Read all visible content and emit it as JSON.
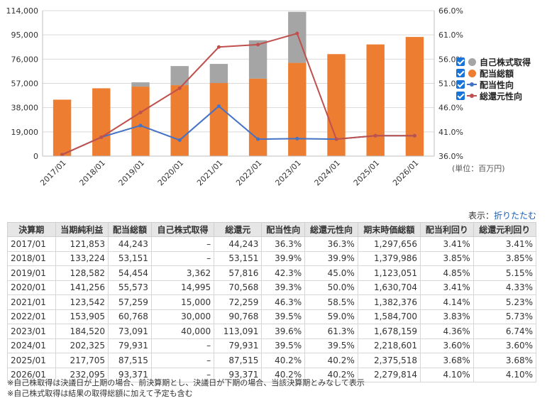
{
  "chart_data": {
    "type": "bar",
    "categories": [
      "2017/01",
      "2018/01",
      "2019/01",
      "2020/01",
      "2021/01",
      "2022/01",
      "2023/01",
      "2024/01",
      "2025/01",
      "2026/01"
    ],
    "y_left": {
      "ticks": [
        "0",
        "19,000",
        "38,000",
        "57,000",
        "76,000",
        "95,000",
        "114,000"
      ],
      "min": 0,
      "max": 114000
    },
    "y_right": {
      "ticks": [
        "36.0%",
        "41.0%",
        "46.0%",
        "51.0%",
        "56.0%",
        "61.0%",
        "66.0%"
      ],
      "min": 36,
      "max": 66
    },
    "series": [
      {
        "name": "配当総額",
        "kind": "bar",
        "color": "#ed7d31",
        "values": [
          44243,
          53151,
          54454,
          55573,
          57259,
          60768,
          73091,
          79931,
          87515,
          93371
        ]
      },
      {
        "name": "自己株式取得",
        "kind": "bar-stacked",
        "color": "#a5a5a5",
        "values": [
          0,
          0,
          3362,
          14995,
          15000,
          30000,
          40000,
          0,
          0,
          0
        ]
      },
      {
        "name": "配当性向",
        "kind": "line",
        "color": "#4472c4",
        "values": [
          36.3,
          39.9,
          42.3,
          39.3,
          46.3,
          39.5,
          39.6,
          39.5,
          40.2,
          40.2
        ]
      },
      {
        "name": "総還元性向",
        "kind": "line",
        "color": "#c0504d",
        "values": [
          36.3,
          39.9,
          45.0,
          50.0,
          58.5,
          59.0,
          61.3,
          39.5,
          40.2,
          40.2
        ]
      }
    ],
    "legend_order": [
      "自己株式取得",
      "配当総額",
      "配当性向",
      "総還元性向"
    ],
    "legend_placement": "right",
    "grid": true
  },
  "unit_label": "(単位：百万円)",
  "display_toggle": {
    "label": "表示：",
    "link": "折りたたむ"
  },
  "table": {
    "headers": [
      "決算期",
      "当期純利益",
      "配当総額",
      "自己株式取得",
      "総還元",
      "配当性向",
      "総還元性向",
      "期末時価総額",
      "配当利回り",
      "総還元利回り"
    ],
    "rows": [
      [
        "2017/01",
        "121,853",
        "44,243",
        "–",
        "44,243",
        "36.3%",
        "36.3%",
        "1,297,656",
        "3.41%",
        "3.41%"
      ],
      [
        "2018/01",
        "133,224",
        "53,151",
        "–",
        "53,151",
        "39.9%",
        "39.9%",
        "1,379,986",
        "3.85%",
        "3.85%"
      ],
      [
        "2019/01",
        "128,582",
        "54,454",
        "3,362",
        "57,816",
        "42.3%",
        "45.0%",
        "1,123,051",
        "4.85%",
        "5.15%"
      ],
      [
        "2020/01",
        "141,256",
        "55,573",
        "14,995",
        "70,568",
        "39.3%",
        "50.0%",
        "1,630,704",
        "3.41%",
        "4.33%"
      ],
      [
        "2021/01",
        "123,542",
        "57,259",
        "15,000",
        "72,259",
        "46.3%",
        "58.5%",
        "1,382,376",
        "4.14%",
        "5.23%"
      ],
      [
        "2022/01",
        "153,905",
        "60,768",
        "30,000",
        "90,768",
        "39.5%",
        "59.0%",
        "1,584,700",
        "3.83%",
        "5.73%"
      ],
      [
        "2023/01",
        "184,520",
        "73,091",
        "40,000",
        "113,091",
        "39.6%",
        "61.3%",
        "1,678,159",
        "4.36%",
        "6.74%"
      ],
      [
        "2024/01",
        "202,325",
        "79,931",
        "–",
        "79,931",
        "39.5%",
        "39.5%",
        "2,218,601",
        "3.60%",
        "3.60%"
      ],
      [
        "2025/01",
        "217,705",
        "87,515",
        "–",
        "87,515",
        "40.2%",
        "40.2%",
        "2,375,518",
        "3.68%",
        "3.68%"
      ],
      [
        "2026/01",
        "232,095",
        "93,371",
        "–",
        "93,371",
        "40.2%",
        "40.2%",
        "2,279,814",
        "4.10%",
        "4.10%"
      ]
    ]
  },
  "notes": [
    "※自己株取得は決議日が上期の場合、前決算期とし、決議日が下期の場合、当該決算期とみなして表示",
    "※自己株式取得は結果の取得総額に加えて予定も含む"
  ]
}
